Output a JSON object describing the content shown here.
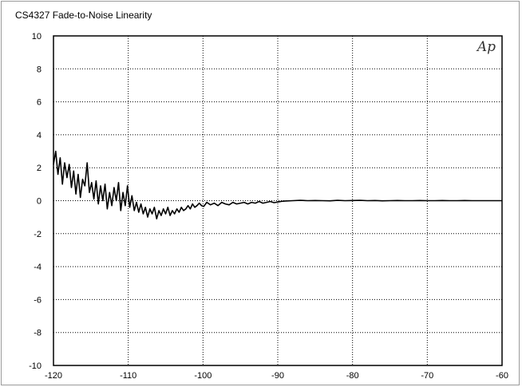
{
  "chart_data": {
    "type": "line",
    "title": "CS4327 Fade-to-Noise Linearity",
    "logo": "Ap",
    "xlabel": "",
    "ylabel": "",
    "xlim": [
      -120,
      -60
    ],
    "ylim": [
      -10,
      10
    ],
    "xticks": [
      -120,
      -110,
      -100,
      -90,
      -80,
      -70,
      -60
    ],
    "yticks": [
      10,
      8,
      6,
      4,
      2,
      0,
      -2,
      -4,
      -6,
      -8,
      -10
    ],
    "grid": true,
    "grid_style": "dotted",
    "series": [
      {
        "color": "#000000",
        "x": [
          -120,
          -119.7,
          -119.4,
          -119.1,
          -118.8,
          -118.5,
          -118.2,
          -117.9,
          -117.6,
          -117.3,
          -117,
          -116.7,
          -116.4,
          -116.1,
          -115.8,
          -115.5,
          -115.2,
          -114.9,
          -114.6,
          -114.3,
          -114,
          -113.7,
          -113.4,
          -113.1,
          -112.8,
          -112.5,
          -112.2,
          -111.9,
          -111.6,
          -111.3,
          -111,
          -110.7,
          -110.4,
          -110.1,
          -109.8,
          -109.5,
          -109.2,
          -108.9,
          -108.6,
          -108.3,
          -108,
          -107.7,
          -107.4,
          -107.1,
          -106.8,
          -106.5,
          -106.2,
          -105.9,
          -105.6,
          -105.3,
          -105,
          -104.7,
          -104.4,
          -104.1,
          -103.8,
          -103.5,
          -103.2,
          -102.9,
          -102.6,
          -102.3,
          -102,
          -101.7,
          -101.4,
          -101.1,
          -100.8,
          -100.5,
          -100.2,
          -99.9,
          -99.5,
          -99,
          -98.5,
          -98,
          -97.5,
          -97,
          -96.5,
          -96,
          -95.5,
          -95,
          -94.5,
          -94,
          -93.5,
          -93,
          -92.5,
          -92,
          -91.5,
          -91,
          -90.5,
          -90,
          -89.5,
          -89,
          -88,
          -87,
          -86,
          -85,
          -84,
          -83,
          -82,
          -81,
          -80,
          -79,
          -78,
          -77,
          -76,
          -75,
          -74,
          -73,
          -72,
          -71,
          -70,
          -69,
          -68,
          -67,
          -66,
          -65,
          -64,
          -63,
          -62,
          -61,
          -60
        ],
        "y": [
          2.2,
          3.0,
          1.6,
          2.6,
          1.0,
          2.3,
          1.4,
          2.2,
          0.8,
          1.8,
          0.4,
          1.6,
          0.2,
          1.3,
          0.9,
          2.3,
          0.5,
          1.1,
          0.1,
          1.2,
          -0.2,
          0.9,
          0.0,
          1.0,
          -0.5,
          0.5,
          -0.3,
          0.8,
          0.0,
          1.1,
          -0.6,
          0.5,
          -0.3,
          0.9,
          -0.4,
          0.3,
          -0.6,
          -0.1,
          -0.7,
          -0.2,
          -0.8,
          -0.4,
          -1.0,
          -0.5,
          -0.8,
          -0.4,
          -1.1,
          -0.6,
          -0.9,
          -0.5,
          -0.8,
          -0.4,
          -0.9,
          -0.6,
          -0.8,
          -0.5,
          -0.7,
          -0.4,
          -0.6,
          -0.5,
          -0.3,
          -0.5,
          -0.2,
          -0.4,
          -0.3,
          -0.15,
          -0.3,
          -0.35,
          -0.1,
          -0.25,
          -0.15,
          -0.3,
          -0.1,
          -0.2,
          -0.25,
          -0.1,
          -0.2,
          -0.15,
          -0.1,
          -0.2,
          -0.1,
          -0.15,
          -0.05,
          -0.15,
          -0.1,
          -0.05,
          -0.12,
          -0.08,
          -0.04,
          -0.02,
          0.0,
          0.02,
          0.0,
          0.01,
          0.0,
          -0.01,
          0.02,
          0.0,
          0.01,
          0.02,
          0.0,
          0.01,
          -0.01,
          0.0,
          0.01,
          0.0,
          0.0,
          0.01,
          0.0,
          0.0,
          0.01,
          0.0,
          0.0,
          0.01,
          0.0,
          0.0,
          0.0,
          0.0,
          0.0
        ]
      }
    ]
  }
}
